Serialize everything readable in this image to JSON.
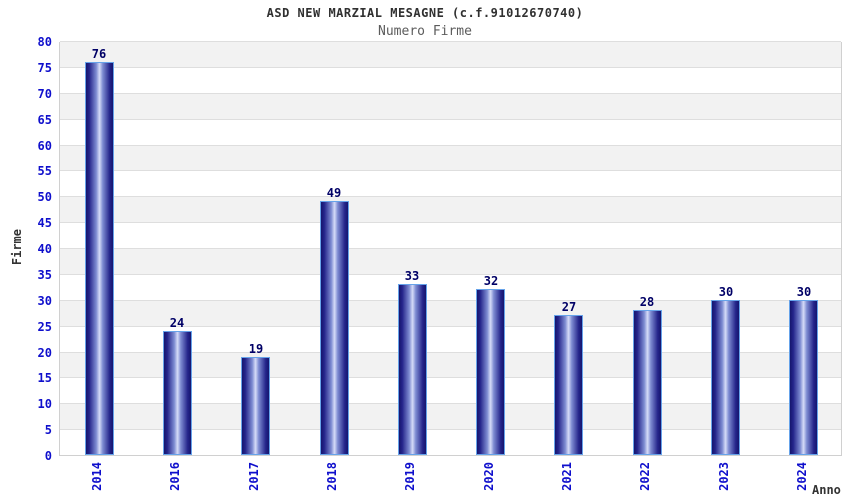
{
  "chart_data": {
    "type": "bar",
    "title": "ASD NEW MARZIAL MESAGNE (c.f.91012670740)",
    "subtitle": "Numero Firme",
    "categories": [
      "2014",
      "2016",
      "2017",
      "2018",
      "2019",
      "2020",
      "2021",
      "2022",
      "2023",
      "2024"
    ],
    "values": [
      76,
      24,
      19,
      49,
      33,
      32,
      27,
      28,
      30,
      30
    ],
    "xlabel": "Anno",
    "ylabel": "Firme",
    "ylim": [
      0,
      80
    ],
    "yticks": [
      0,
      5,
      10,
      15,
      20,
      25,
      30,
      35,
      40,
      45,
      50,
      55,
      60,
      65,
      70,
      75,
      80
    ],
    "grid": "horizontal-bands-alternating",
    "legend": "none",
    "colors": {
      "bar_dark": "#16166e",
      "bar_mid": "#7e8cd2",
      "bar_light": "#d6dcf8",
      "bar_border": "#66a3ea",
      "tick_label": "#0f0fcc",
      "value_label": "#000066",
      "band_gray": "#f2f2f2",
      "band_white": "#ffffff",
      "grid_line": "#dedede",
      "title": "#303030",
      "subtitle": "#5c5c5c",
      "axis_title": "#333333"
    }
  }
}
